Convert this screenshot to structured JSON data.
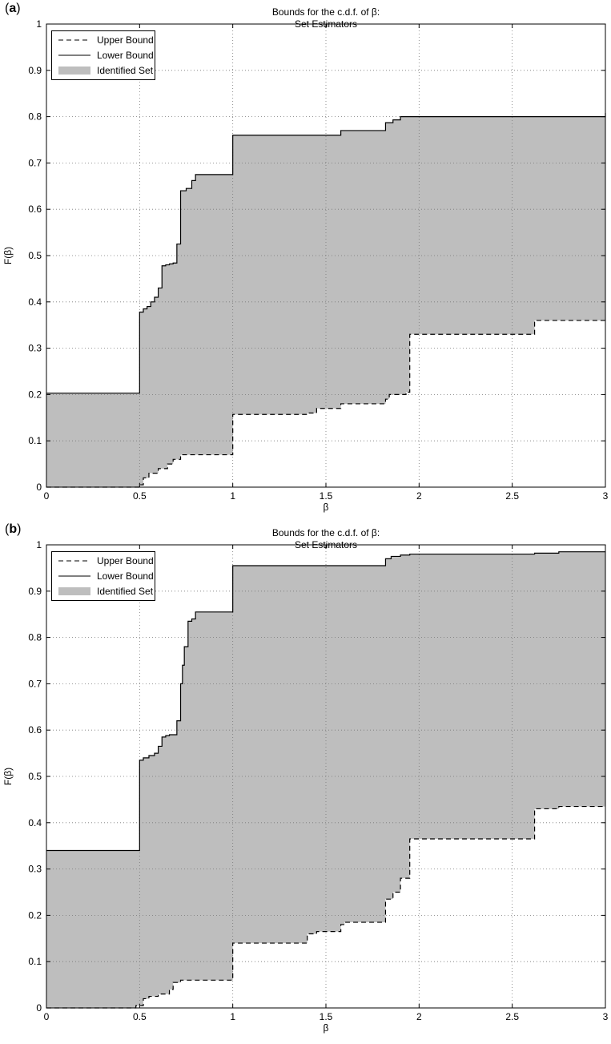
{
  "colors": {
    "fill": "#bebebe",
    "line": "#000000",
    "grid": "#777777"
  },
  "chart_data": [
    {
      "panel_label": "a",
      "type": "line",
      "title_lines": [
        "Bounds for the c.d.f. of β:",
        "Set Estimators"
      ],
      "xlabel": "β",
      "ylabel": "F(β)",
      "xlim": [
        0,
        3
      ],
      "ylim": [
        0,
        1
      ],
      "xticks": [
        0,
        0.5,
        1,
        1.5,
        2,
        2.5,
        3
      ],
      "xtick_labels": [
        "0",
        "0.5",
        "1",
        "1.5",
        "2",
        "2.5",
        "3"
      ],
      "yticks": [
        0,
        0.1,
        0.2,
        0.3,
        0.4,
        0.5,
        0.6,
        0.7,
        0.8,
        0.9,
        1
      ],
      "ytick_labels": [
        "0",
        "0.1",
        "0.2",
        "0.3",
        "0.4",
        "0.5",
        "0.6",
        "0.7",
        "0.8",
        "0.9",
        "1"
      ],
      "grid": true,
      "legend": {
        "position": "top-left",
        "entries": [
          "Upper Bound",
          "Lower Bound",
          "Identified Set"
        ]
      },
      "series": [
        {
          "name": "Upper Bound",
          "style": "dashed",
          "x": [
            0,
            0.5,
            0.52,
            0.55,
            0.6,
            0.65,
            0.68,
            0.72,
            1.0,
            1.4,
            1.45,
            1.58,
            1.6,
            1.82,
            1.84,
            1.93,
            1.95,
            2.62,
            3.0
          ],
          "y": [
            0,
            0.005,
            0.02,
            0.03,
            0.04,
            0.05,
            0.06,
            0.07,
            0.157,
            0.16,
            0.17,
            0.18,
            0.18,
            0.19,
            0.2,
            0.205,
            0.33,
            0.36,
            0.36
          ]
        },
        {
          "name": "Lower Bound",
          "style": "solid",
          "x": [
            0,
            0.5,
            0.52,
            0.54,
            0.56,
            0.58,
            0.6,
            0.62,
            0.64,
            0.66,
            0.68,
            0.7,
            0.72,
            0.75,
            0.78,
            0.8,
            1.0,
            1.58,
            1.6,
            1.82,
            1.86,
            1.9,
            3.0
          ],
          "y": [
            0.203,
            0.378,
            0.385,
            0.39,
            0.4,
            0.41,
            0.43,
            0.478,
            0.48,
            0.482,
            0.484,
            0.525,
            0.64,
            0.645,
            0.662,
            0.675,
            0.76,
            0.77,
            0.77,
            0.787,
            0.793,
            0.8,
            0.808
          ]
        }
      ]
    },
    {
      "panel_label": "b",
      "type": "line",
      "title_lines": [
        "Bounds for the c.d.f. of β:",
        "Set Estimators"
      ],
      "xlabel": "β",
      "ylabel": "F(β)",
      "xlim": [
        0,
        3
      ],
      "ylim": [
        0,
        1
      ],
      "xticks": [
        0,
        0.5,
        1,
        1.5,
        2,
        2.5,
        3
      ],
      "xtick_labels": [
        "0",
        "0.5",
        "1",
        "1.5",
        "2",
        "2.5",
        "3"
      ],
      "yticks": [
        0,
        0.1,
        0.2,
        0.3,
        0.4,
        0.5,
        0.6,
        0.7,
        0.8,
        0.9,
        1
      ],
      "ytick_labels": [
        "0",
        "0.1",
        "0.2",
        "0.3",
        "0.4",
        "0.5",
        "0.6",
        "0.7",
        "0.8",
        "0.9",
        "1"
      ],
      "grid": true,
      "legend": {
        "position": "top-left",
        "entries": [
          "Upper Bound",
          "Lower Bound",
          "Identified Set"
        ]
      },
      "series": [
        {
          "name": "Upper Bound",
          "style": "dashed",
          "x": [
            0,
            0.48,
            0.52,
            0.55,
            0.6,
            0.66,
            0.68,
            0.72,
            1.0,
            1.4,
            1.45,
            1.58,
            1.6,
            1.82,
            1.86,
            1.9,
            1.95,
            2.62,
            2.75,
            3.0
          ],
          "y": [
            0,
            0.005,
            0.02,
            0.025,
            0.03,
            0.04,
            0.055,
            0.06,
            0.14,
            0.16,
            0.165,
            0.18,
            0.185,
            0.235,
            0.25,
            0.28,
            0.365,
            0.43,
            0.435,
            0.435
          ]
        },
        {
          "name": "Lower Bound",
          "style": "solid",
          "x": [
            0,
            0.5,
            0.52,
            0.55,
            0.58,
            0.6,
            0.62,
            0.64,
            0.66,
            0.68,
            0.7,
            0.72,
            0.73,
            0.74,
            0.76,
            0.78,
            0.8,
            1.0,
            1.82,
            1.85,
            1.9,
            1.95,
            2.62,
            2.75,
            3.0
          ],
          "y": [
            0.34,
            0.535,
            0.54,
            0.545,
            0.55,
            0.565,
            0.585,
            0.588,
            0.59,
            0.59,
            0.62,
            0.7,
            0.74,
            0.78,
            0.835,
            0.84,
            0.855,
            0.955,
            0.97,
            0.975,
            0.978,
            0.98,
            0.982,
            0.985,
            0.985
          ]
        }
      ]
    }
  ]
}
